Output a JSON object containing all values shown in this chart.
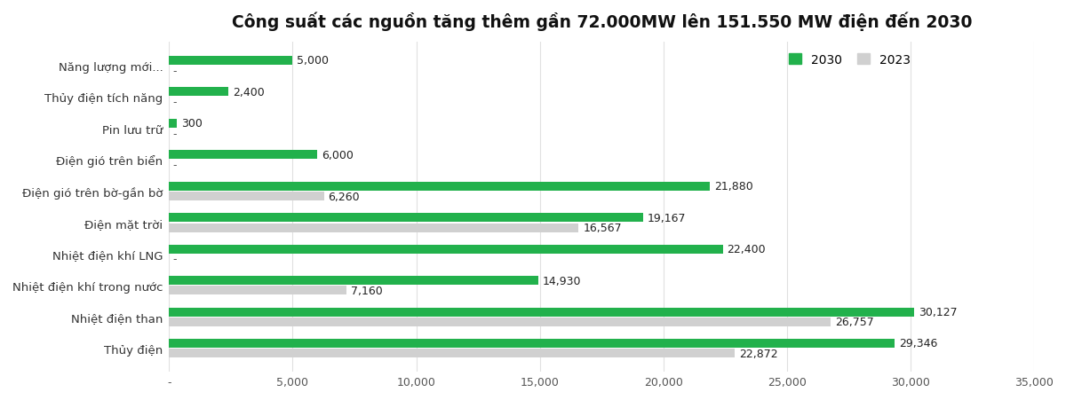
{
  "title": "Công suất các nguồn tăng thêm gần 72.000MW lên 151.550 MW điện đến 2030",
  "categories": [
    "Thủy điện",
    "Nhiệt điện than",
    "Nhiệt điện khí trong nước",
    "Nhiệt điện khí LNG",
    "Điện mặt trời",
    "Điện gió trên bờ-gần bờ",
    "Điện gió trên biển",
    "Pin lưu trữ",
    "Thủy điện tích năng",
    "Năng lượng mới..."
  ],
  "values_2030": [
    29346,
    30127,
    14930,
    22400,
    19167,
    21880,
    6000,
    300,
    2400,
    5000
  ],
  "values_2023": [
    22872,
    26757,
    7160,
    0,
    16567,
    6260,
    0,
    0,
    0,
    0
  ],
  "color_2030": "#22b14c",
  "color_2023": "#d0d0d0",
  "xlim": [
    0,
    35000
  ],
  "xticks": [
    0,
    5000,
    10000,
    15000,
    20000,
    25000,
    30000,
    35000
  ],
  "xtick_labels": [
    "-",
    "5,000",
    "10,000",
    "15,000",
    "20,000",
    "25,000",
    "30,000",
    "35,000"
  ],
  "legend_2030": "2030",
  "legend_2023": "2023",
  "background_color": "#ffffff",
  "bar_height": 0.28,
  "bar_gap": 0.04,
  "title_fontsize": 13.5,
  "label_fontsize": 9.5,
  "value_fontsize": 9
}
